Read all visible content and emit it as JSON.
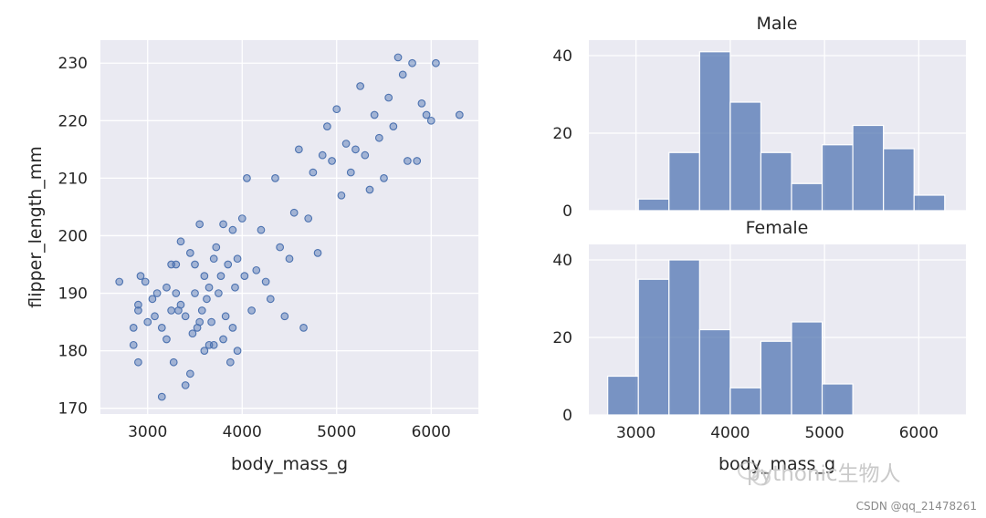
{
  "chart_data": [
    {
      "type": "scatter",
      "xlabel": "body_mass_g",
      "ylabel": "flipper_length_mm",
      "xlim": [
        2500,
        6500
      ],
      "ylim": [
        169,
        234
      ],
      "xticks": [
        3000,
        4000,
        5000,
        6000
      ],
      "yticks": [
        170,
        180,
        190,
        200,
        210,
        220,
        230
      ],
      "grid": true,
      "marker_color": "#4c72b0",
      "points": [
        [
          2700,
          192
        ],
        [
          2850,
          184
        ],
        [
          2850,
          181
        ],
        [
          2900,
          187
        ],
        [
          2900,
          188
        ],
        [
          2900,
          178
        ],
        [
          2925,
          193
        ],
        [
          2975,
          192
        ],
        [
          3000,
          185
        ],
        [
          3050,
          189
        ],
        [
          3075,
          186
        ],
        [
          3100,
          190
        ],
        [
          3150,
          184
        ],
        [
          3150,
          172
        ],
        [
          3200,
          182
        ],
        [
          3200,
          191
        ],
        [
          3250,
          187
        ],
        [
          3250,
          195
        ],
        [
          3275,
          178
        ],
        [
          3300,
          190
        ],
        [
          3300,
          195
        ],
        [
          3325,
          187
        ],
        [
          3350,
          199
        ],
        [
          3350,
          188
        ],
        [
          3400,
          186
        ],
        [
          3400,
          174
        ],
        [
          3450,
          176
        ],
        [
          3450,
          197
        ],
        [
          3475,
          183
        ],
        [
          3500,
          190
        ],
        [
          3500,
          195
        ],
        [
          3525,
          184
        ],
        [
          3550,
          202
        ],
        [
          3550,
          185
        ],
        [
          3575,
          187
        ],
        [
          3600,
          193
        ],
        [
          3600,
          180
        ],
        [
          3625,
          189
        ],
        [
          3650,
          191
        ],
        [
          3650,
          181
        ],
        [
          3675,
          185
        ],
        [
          3700,
          196
        ],
        [
          3700,
          181
        ],
        [
          3725,
          198
        ],
        [
          3750,
          190
        ],
        [
          3775,
          193
        ],
        [
          3800,
          202
        ],
        [
          3800,
          182
        ],
        [
          3825,
          186
        ],
        [
          3850,
          195
        ],
        [
          3875,
          178
        ],
        [
          3900,
          184
        ],
        [
          3900,
          201
        ],
        [
          3925,
          191
        ],
        [
          3950,
          180
        ],
        [
          3950,
          196
        ],
        [
          4000,
          203
        ],
        [
          4025,
          193
        ],
        [
          4050,
          210
        ],
        [
          4100,
          187
        ],
        [
          4150,
          194
        ],
        [
          4200,
          201
        ],
        [
          4250,
          192
        ],
        [
          4300,
          189
        ],
        [
          4350,
          210
        ],
        [
          4400,
          198
        ],
        [
          4450,
          186
        ],
        [
          4500,
          196
        ],
        [
          4550,
          204
        ],
        [
          4600,
          215
        ],
        [
          4650,
          184
        ],
        [
          4700,
          203
        ],
        [
          4750,
          211
        ],
        [
          4800,
          197
        ],
        [
          4850,
          214
        ],
        [
          4900,
          219
        ],
        [
          4950,
          213
        ],
        [
          5000,
          222
        ],
        [
          5050,
          207
        ],
        [
          5100,
          216
        ],
        [
          5150,
          211
        ],
        [
          5200,
          215
        ],
        [
          5250,
          226
        ],
        [
          5300,
          214
        ],
        [
          5350,
          208
        ],
        [
          5400,
          221
        ],
        [
          5450,
          217
        ],
        [
          5500,
          210
        ],
        [
          5550,
          224
        ],
        [
          5600,
          219
        ],
        [
          5650,
          231
        ],
        [
          5700,
          228
        ],
        [
          5750,
          213
        ],
        [
          5800,
          230
        ],
        [
          5850,
          213
        ],
        [
          5900,
          223
        ],
        [
          5950,
          221
        ],
        [
          6000,
          220
        ],
        [
          6050,
          230
        ],
        [
          6300,
          221
        ]
      ]
    },
    {
      "type": "bar",
      "title": "Male",
      "xlabel": "body_mass_g",
      "bin_edges": [
        2700,
        3025,
        3350,
        3675,
        4000,
        4325,
        4650,
        4975,
        5300,
        5625,
        5950,
        6275
      ],
      "values": [
        0,
        3,
        15,
        41,
        28,
        15,
        7,
        17,
        22,
        16,
        4
      ],
      "xlim": [
        2500,
        6500
      ],
      "ylim": [
        0,
        44
      ],
      "xticks": [
        3000,
        4000,
        5000,
        6000
      ],
      "yticks": [
        0,
        20,
        40
      ],
      "bar_color": "#4c72b0"
    },
    {
      "type": "bar",
      "title": "Female",
      "xlabel": "body_mass_g",
      "bin_edges": [
        2700,
        3025,
        3350,
        3675,
        4000,
        4325,
        4650,
        4975,
        5300,
        5625,
        5950,
        6275
      ],
      "values": [
        10,
        35,
        40,
        22,
        7,
        19,
        24,
        8,
        0,
        0,
        0
      ],
      "xlim": [
        2500,
        6500
      ],
      "ylim": [
        0,
        44
      ],
      "xticks": [
        3000,
        4000,
        5000,
        6000
      ],
      "yticks": [
        0,
        20,
        40
      ],
      "bar_color": "#4c72b0"
    }
  ],
  "watermark": "pythonic生物人",
  "csdn_credit": "CSDN @qq_21478261"
}
